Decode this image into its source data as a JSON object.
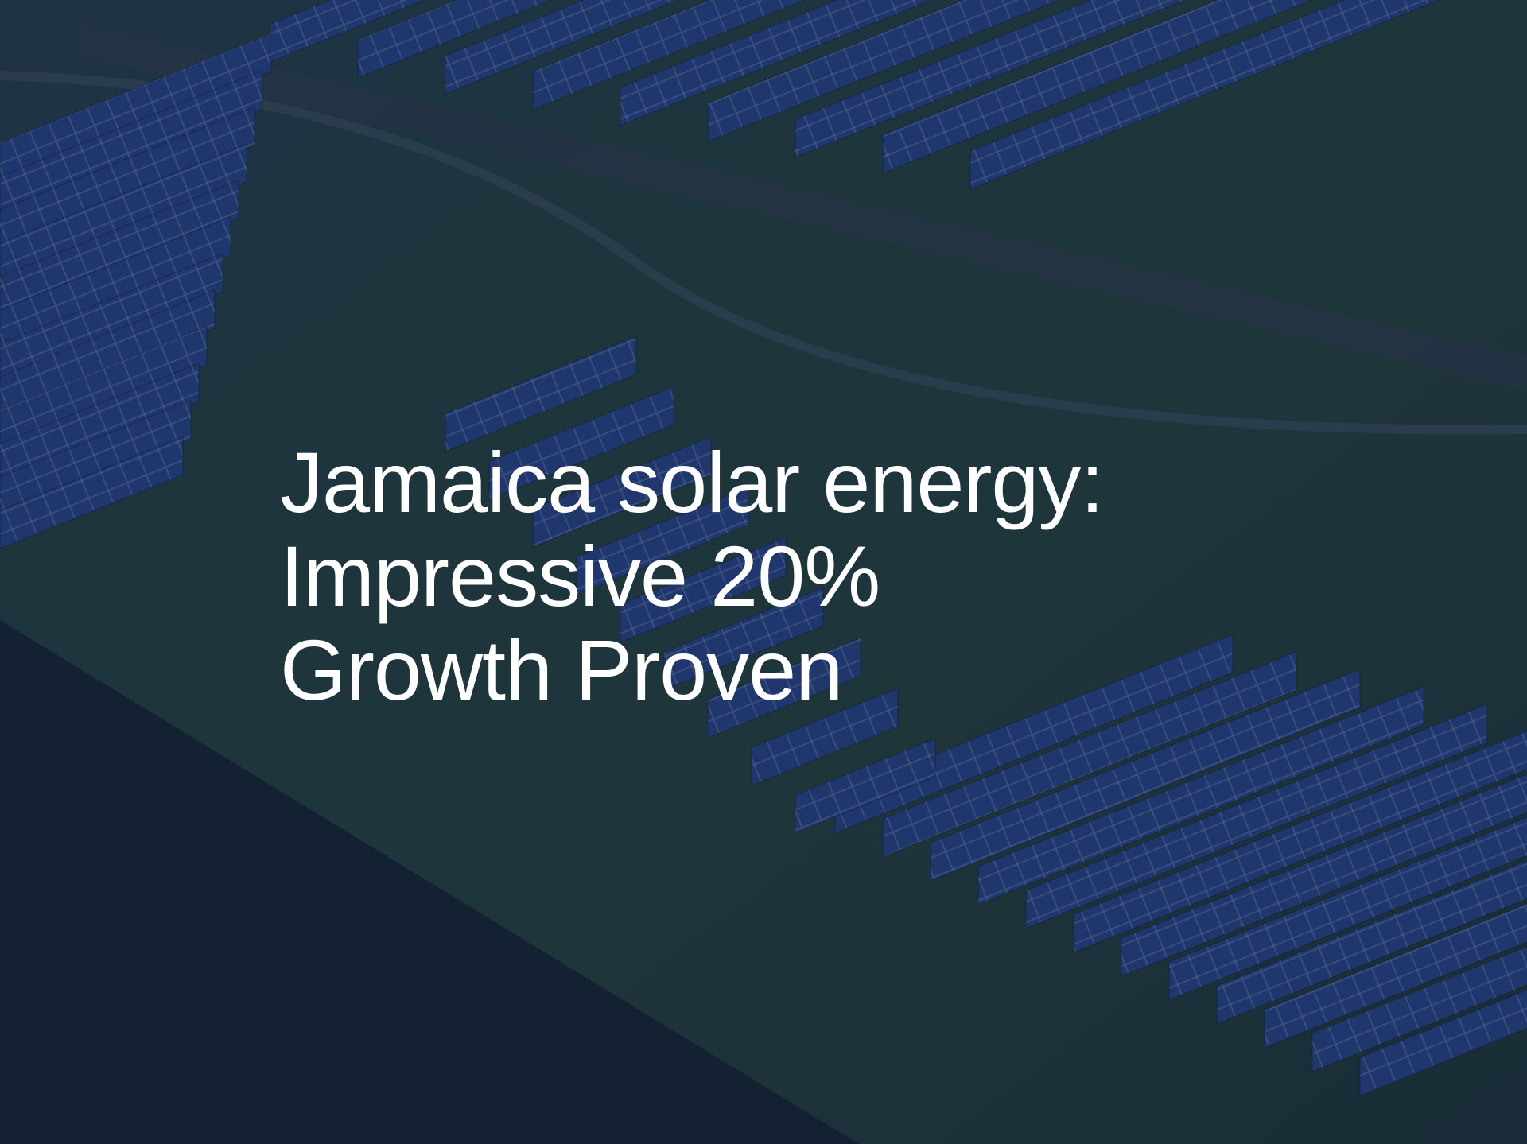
{
  "hero": {
    "title_lines": [
      "Jamaica solar energy:",
      "Impressive 20%",
      "Growth Proven"
    ]
  },
  "colors": {
    "overlay": "#101c3c",
    "text": "#ffffff",
    "panel_blue": "#2d4e94",
    "grass_green": "#2b4a3a"
  }
}
